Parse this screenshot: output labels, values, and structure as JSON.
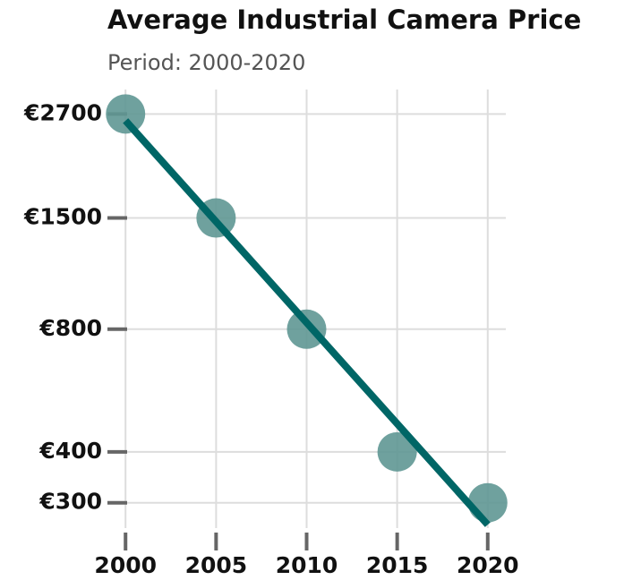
{
  "chart_data": {
    "type": "scatter",
    "title": "Average Industrial Camera Price",
    "subtitle": "Period: 2000-2020",
    "x": [
      2000,
      2005,
      2010,
      2015,
      2020
    ],
    "values": [
      2700,
      1500,
      800,
      400,
      300
    ],
    "color": "#5f9794",
    "trend": {
      "x": [
        2000,
        2020
      ],
      "values": [
        2600,
        265
      ],
      "color": "#006666"
    },
    "xlim": [
      1999,
      2021
    ],
    "xticks": [
      2000,
      2005,
      2010,
      2015,
      2020
    ],
    "ylim": [
      260,
      3100
    ],
    "yscale": "log",
    "yticks": [
      {
        "value": 300,
        "label": "€300"
      },
      {
        "value": 400,
        "label": "€400"
      },
      {
        "value": 800,
        "label": "€800"
      },
      {
        "value": 1500,
        "label": "€1500"
      },
      {
        "value": 2700,
        "label": "€2700"
      }
    ],
    "grid": true
  }
}
